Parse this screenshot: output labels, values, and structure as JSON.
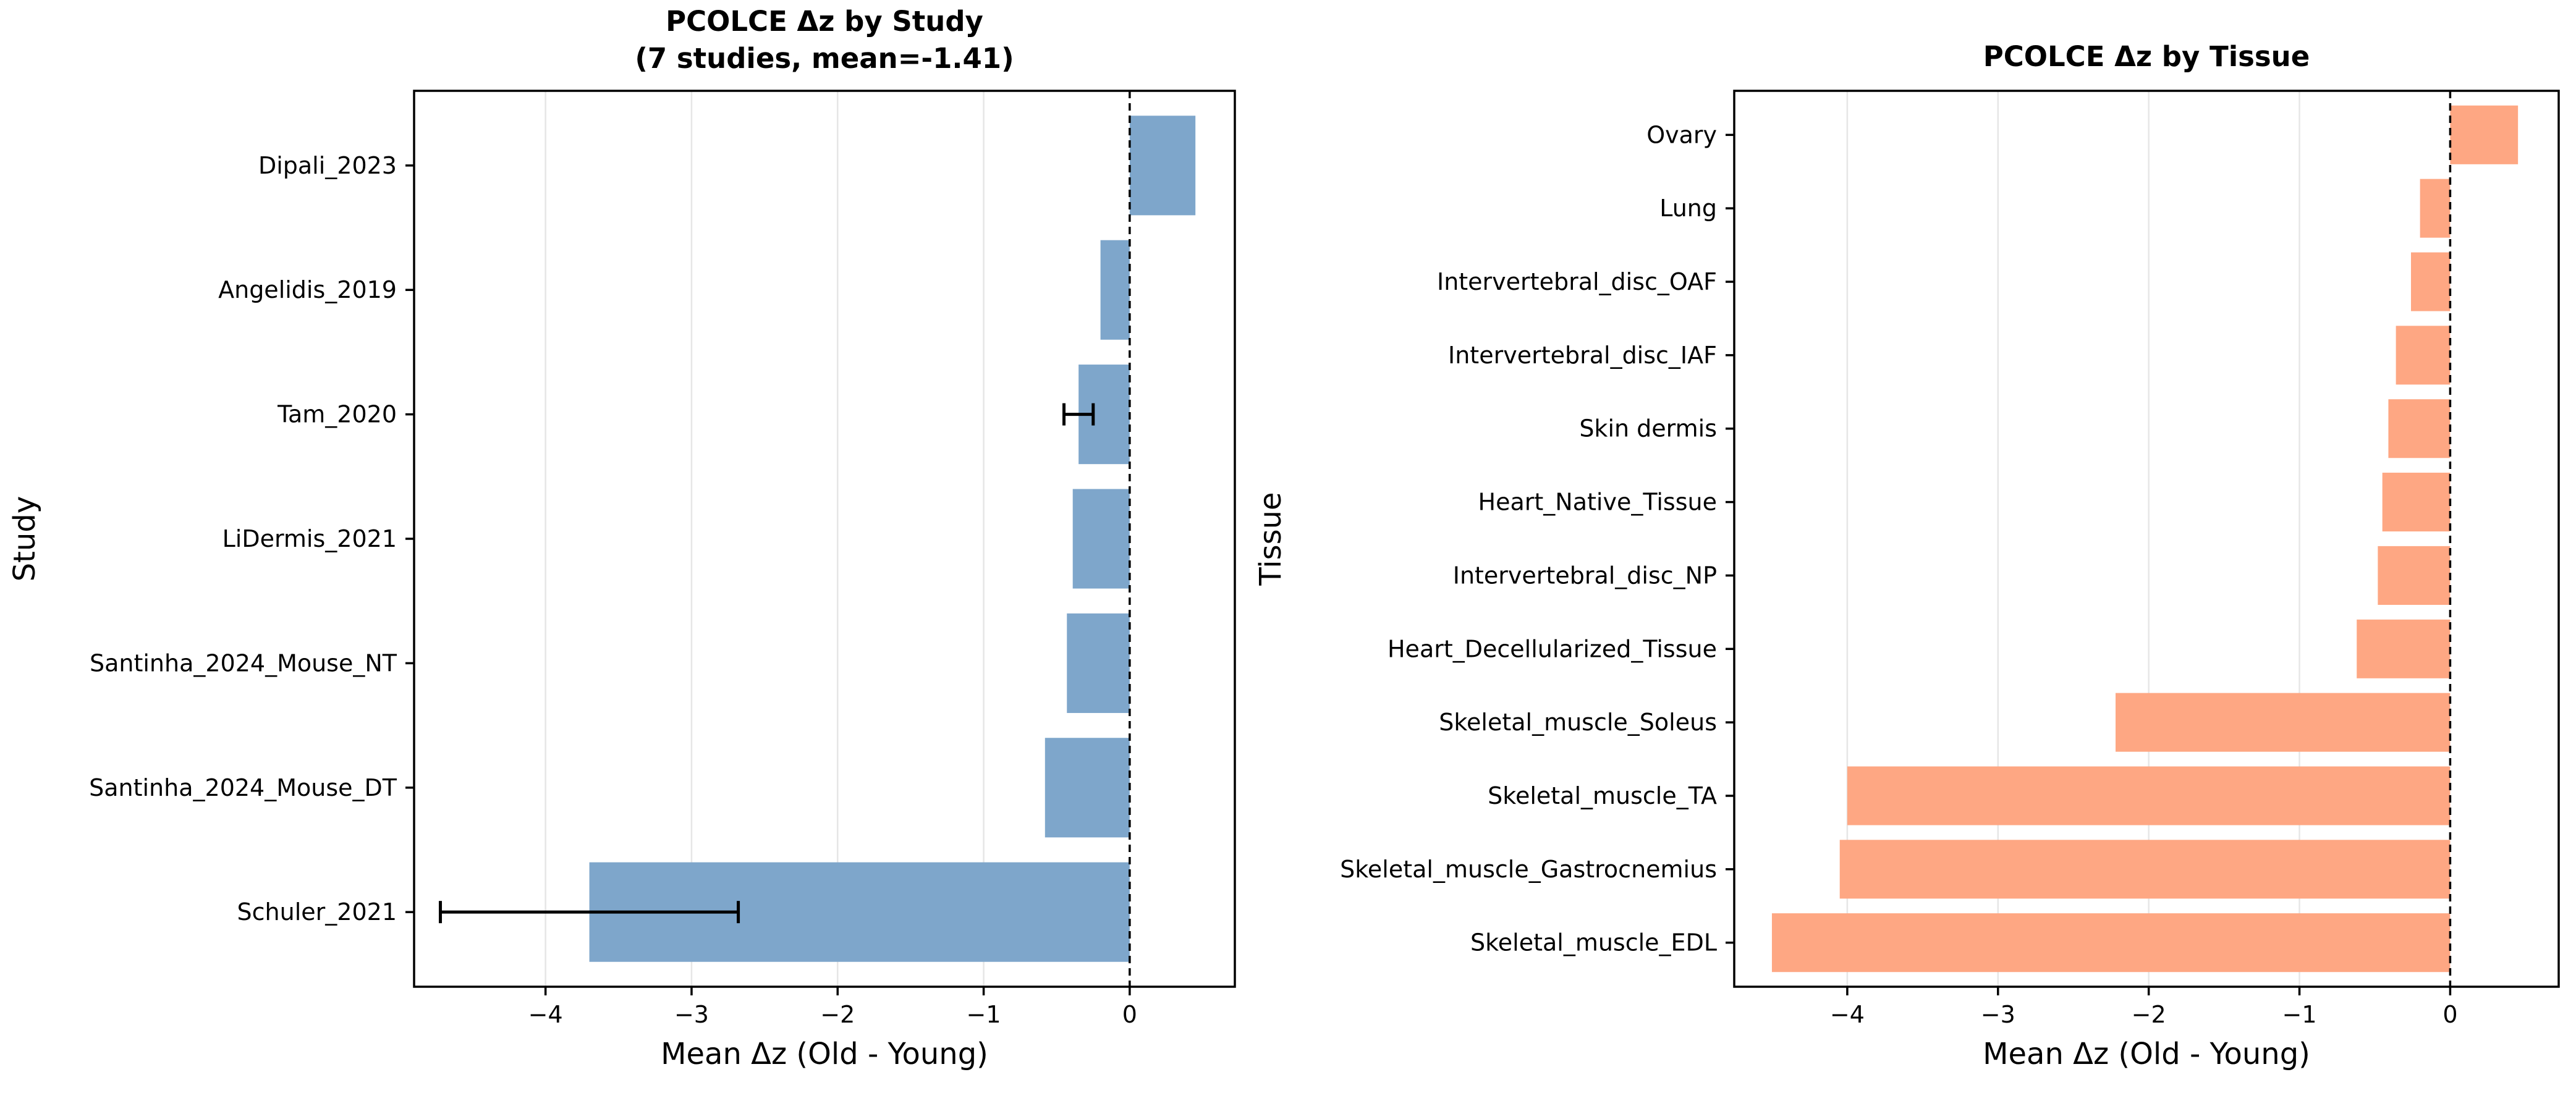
{
  "chart_data": [
    {
      "type": "bar",
      "orientation": "horizontal",
      "title": [
        "PCOLCE Δz by Study",
        "(7 studies, mean=-1.41)"
      ],
      "xlabel": "Mean Δz (Old - Young)",
      "ylabel": "Study",
      "xlim": [
        -4.9,
        0.72
      ],
      "xticks": [
        -4,
        -3,
        -2,
        -1,
        0
      ],
      "xtick_labels": [
        "−4",
        "−3",
        "−2",
        "−1",
        "0"
      ],
      "grid": "x",
      "zero_line": "dashed",
      "color": "#7ea6cb",
      "categories": [
        "Dipali_2023",
        "Angelidis_2019",
        "Tam_2020",
        "LiDermis_2021",
        "Santinha_2024_Mouse_NT",
        "Santinha_2024_Mouse_DT",
        "Schuler_2021"
      ],
      "values": [
        0.45,
        -0.2,
        -0.35,
        -0.39,
        -0.43,
        -0.58,
        -3.7
      ],
      "errors": [
        null,
        null,
        0.1,
        null,
        null,
        null,
        1.02
      ]
    },
    {
      "type": "bar",
      "orientation": "horizontal",
      "title": [
        "PCOLCE Δz by Tissue"
      ],
      "xlabel": "Mean Δz (Old - Young)",
      "ylabel": "Tissue",
      "xlim": [
        -4.75,
        0.72
      ],
      "xticks": [
        -4,
        -3,
        -2,
        -1,
        0
      ],
      "xtick_labels": [
        "−4",
        "−3",
        "−2",
        "−1",
        "0"
      ],
      "grid": "x",
      "zero_line": "dashed",
      "color": "#fea783",
      "categories": [
        "Ovary",
        "Lung",
        "Intervertebral_disc_OAF",
        "Intervertebral_disc_IAF",
        "Skin dermis",
        "Heart_Native_Tissue",
        "Intervertebral_disc_NP",
        "Heart_Decellularized_Tissue",
        "Skeletal_muscle_Soleus",
        "Skeletal_muscle_TA",
        "Skeletal_muscle_Gastrocnemius",
        "Skeletal_muscle_EDL"
      ],
      "values": [
        0.45,
        -0.2,
        -0.26,
        -0.36,
        -0.41,
        -0.45,
        -0.48,
        -0.62,
        -2.22,
        -4.0,
        -4.05,
        -4.5
      ]
    }
  ]
}
